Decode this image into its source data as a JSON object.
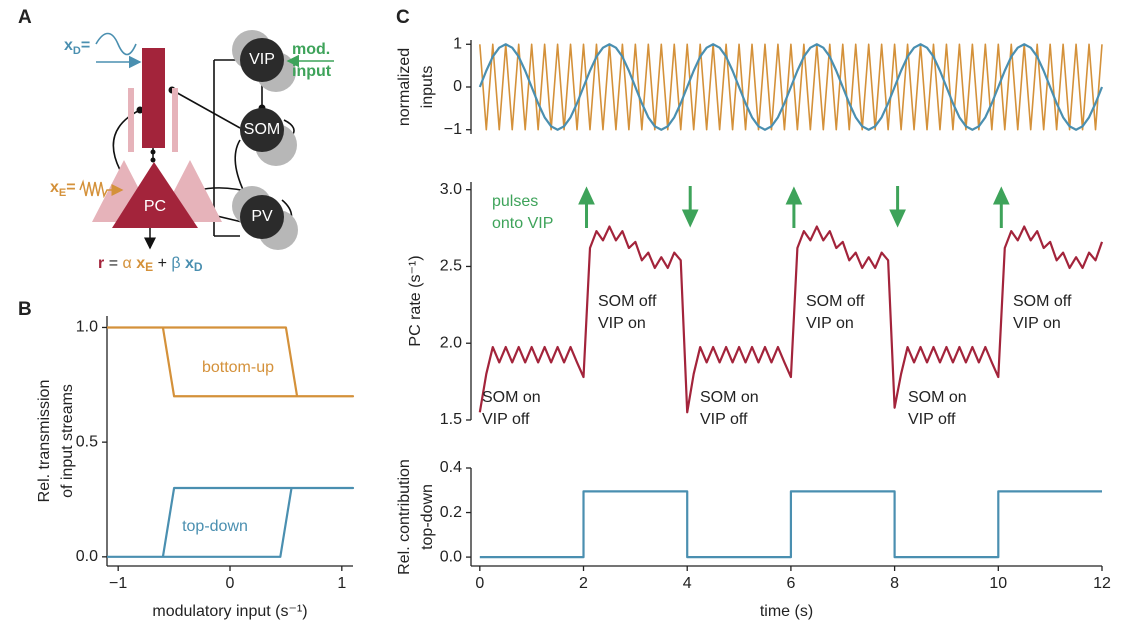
{
  "panel_labels": [
    "A",
    "B",
    "C"
  ],
  "diagram": {
    "cells": [
      "VIP",
      "SOM",
      "PV",
      "PC"
    ],
    "mod_input": [
      "mod.",
      "input"
    ],
    "xD": [
      "x",
      "D",
      "="
    ],
    "xE": [
      "x",
      "E",
      "="
    ],
    "equation": [
      "r",
      "=",
      "α",
      "x",
      "E",
      "+",
      "β",
      "x",
      "D"
    ]
  },
  "chart_data": [
    {
      "type": "line",
      "xlabel": "modulatory input (s⁻¹)",
      "ylabel": [
        "Rel. transmission",
        "of input streams"
      ],
      "xlim": [
        -1.1,
        1.1
      ],
      "ylim": [
        -0.04,
        1.05
      ],
      "xticks": [
        {
          "value": -1,
          "label": "−1"
        },
        0,
        1
      ],
      "yticks": [
        {
          "value": 0,
          "label": "0.0"
        },
        0.5,
        {
          "value": 1,
          "label": "1.0"
        }
      ],
      "series": [
        {
          "name": "bottom-up",
          "color": "#d4913a",
          "x": [
            -1.1,
            0.5,
            0.6,
            1.1,
            -0.5,
            -0.6,
            -1.1
          ],
          "values": [
            1,
            1,
            0.7,
            0.7,
            0.7,
            1,
            1
          ]
        },
        {
          "name": "top-down",
          "color": "#4a8fb0",
          "x": [
            -1.1,
            0.45,
            0.55,
            1.1,
            -0.5,
            -0.6,
            -1.1
          ],
          "values": [
            0,
            0,
            0.3,
            0.3,
            0.3,
            0,
            0
          ]
        }
      ]
    },
    {
      "type": "line",
      "ylabel": [
        "normalized",
        "inputs"
      ],
      "xlim": [
        -0.17,
        12
      ],
      "ylim": [
        -1.1,
        1.1
      ],
      "yticks": [
        {
          "value": -1,
          "label": "−1"
        },
        0,
        1
      ],
      "x": [
        0,
        0.125,
        0.25,
        0.375,
        0.5,
        0.625,
        0.75,
        0.875,
        1,
        1.125,
        1.25,
        1.375,
        1.5,
        1.625,
        1.75,
        1.875,
        2,
        2.125,
        2.25,
        2.375,
        2.5,
        2.625,
        2.75,
        2.875,
        3,
        3.125,
        3.25,
        3.375,
        3.5,
        3.625,
        3.75,
        3.875,
        4,
        4.125,
        4.25,
        4.375,
        4.5,
        4.625,
        4.75,
        4.875,
        5,
        5.125,
        5.25,
        5.375,
        5.5,
        5.625,
        5.75,
        5.875,
        6,
        6.125,
        6.25,
        6.375,
        6.5,
        6.625,
        6.75,
        6.875,
        7,
        7.125,
        7.25,
        7.375,
        7.5,
        7.625,
        7.75,
        7.875,
        8,
        8.125,
        8.25,
        8.375,
        8.5,
        8.625,
        8.75,
        8.875,
        9,
        9.125,
        9.25,
        9.375,
        9.5,
        9.625,
        9.75,
        9.875,
        10,
        10.125,
        10.25,
        10.375,
        10.5,
        10.625,
        10.75,
        10.875,
        11,
        11.125,
        11.25,
        11.375,
        11.5,
        11.625,
        11.75,
        11.875,
        12
      ],
      "series": [
        {
          "color": "#d4913a",
          "values": [
            1,
            -1,
            1,
            -1,
            1,
            -1,
            1,
            -1,
            1,
            -1,
            1,
            -1,
            1,
            -1,
            1,
            -1,
            1,
            -1,
            1,
            -1,
            1,
            -1,
            1,
            -1,
            1,
            -1,
            1,
            -1,
            1,
            -1,
            1,
            -1,
            1,
            -1,
            1,
            -1,
            1,
            -1,
            1,
            -1,
            1,
            -1,
            1,
            -1,
            1,
            -1,
            1,
            -1,
            1,
            -1,
            1,
            -1,
            1,
            -1,
            1,
            -1,
            1,
            -1,
            1,
            -1,
            1,
            -1,
            1,
            -1,
            1,
            -1,
            1,
            -1,
            1,
            -1,
            1,
            -1,
            1,
            -1,
            1,
            -1,
            1,
            -1,
            1,
            -1,
            1,
            -1,
            1,
            -1,
            1,
            -1,
            1,
            -1,
            1,
            -1,
            1,
            -1,
            1,
            -1,
            1,
            -1,
            1
          ]
        },
        {
          "color": "#4a8fb0",
          "values": [
            0,
            0.38,
            0.71,
            0.92,
            1,
            0.92,
            0.71,
            0.38,
            0,
            -0.38,
            -0.71,
            -0.92,
            -1,
            -0.92,
            -0.71,
            -0.38,
            0,
            0.38,
            0.71,
            0.92,
            1,
            0.92,
            0.71,
            0.38,
            0,
            -0.38,
            -0.71,
            -0.92,
            -1,
            -0.92,
            -0.71,
            -0.38,
            0,
            0.38,
            0.71,
            0.92,
            1,
            0.92,
            0.71,
            0.38,
            0,
            -0.38,
            -0.71,
            -0.92,
            -1,
            -0.92,
            -0.71,
            -0.38,
            0,
            0.38,
            0.71,
            0.92,
            1,
            0.92,
            0.71,
            0.38,
            0,
            -0.38,
            -0.71,
            -0.92,
            -1,
            -0.92,
            -0.71,
            -0.38,
            0,
            0.38,
            0.71,
            0.92,
            1,
            0.92,
            0.71,
            0.38,
            0,
            -0.38,
            -0.71,
            -0.92,
            -1,
            -0.92,
            -0.71,
            -0.38,
            0,
            0.38,
            0.71,
            0.92,
            1,
            0.92,
            0.71,
            0.38,
            0,
            -0.38,
            -0.71,
            -0.92,
            -1,
            -0.92,
            -0.71,
            -0.38,
            0
          ]
        }
      ]
    },
    {
      "type": "line",
      "ylabel": "PC rate (s⁻¹)",
      "xlim": [
        -0.17,
        12
      ],
      "ylim": [
        1.5,
        3.05
      ],
      "yticks": [
        1.5,
        {
          "value": 2,
          "label": "2.0"
        },
        2.5,
        {
          "value": 3,
          "label": "3.0"
        }
      ],
      "x": [
        0,
        0.125,
        0.25,
        0.375,
        0.5,
        0.625,
        0.75,
        0.875,
        1,
        1.125,
        1.25,
        1.375,
        1.5,
        1.625,
        1.75,
        1.875,
        2,
        2.125,
        2.25,
        2.375,
        2.5,
        2.625,
        2.75,
        2.875,
        3,
        3.125,
        3.25,
        3.375,
        3.5,
        3.625,
        3.75,
        3.875,
        4,
        4.125,
        4.25,
        4.375,
        4.5,
        4.625,
        4.75,
        4.875,
        5,
        5.125,
        5.25,
        5.375,
        5.5,
        5.625,
        5.75,
        5.875,
        6,
        6.125,
        6.25,
        6.375,
        6.5,
        6.625,
        6.75,
        6.875,
        7,
        7.125,
        7.25,
        7.375,
        7.5,
        7.625,
        7.75,
        7.875,
        8,
        8.125,
        8.25,
        8.375,
        8.5,
        8.625,
        8.75,
        8.875,
        9,
        9.125,
        9.25,
        9.375,
        9.5,
        9.625,
        9.75,
        9.875,
        10,
        10.125,
        10.25,
        10.375,
        10.5,
        10.625,
        10.75,
        10.875,
        11,
        11.125,
        11.25,
        11.375,
        11.5,
        11.625,
        11.75,
        11.875,
        12
      ],
      "series": [
        {
          "color": "#a3243b",
          "values": [
            1.55,
            1.8,
            1.975,
            1.875,
            1.975,
            1.875,
            1.975,
            1.875,
            1.975,
            1.875,
            1.975,
            1.875,
            1.975,
            1.875,
            1.975,
            1.875,
            1.78,
            2.62,
            2.73,
            2.67,
            2.76,
            2.67,
            2.73,
            2.62,
            2.66,
            2.54,
            2.59,
            2.49,
            2.56,
            2.49,
            2.59,
            2.54,
            1.55,
            1.8,
            1.975,
            1.875,
            1.975,
            1.875,
            1.975,
            1.875,
            1.975,
            1.875,
            1.975,
            1.875,
            1.975,
            1.875,
            1.975,
            1.875,
            1.78,
            2.62,
            2.73,
            2.67,
            2.76,
            2.67,
            2.73,
            2.62,
            2.66,
            2.54,
            2.59,
            2.49,
            2.56,
            2.49,
            2.59,
            2.54,
            1.58,
            1.8,
            1.975,
            1.875,
            1.975,
            1.875,
            1.975,
            1.875,
            1.975,
            1.875,
            1.975,
            1.875,
            1.975,
            1.875,
            1.975,
            1.875,
            1.78,
            2.62,
            2.73,
            2.67,
            2.76,
            2.67,
            2.73,
            2.62,
            2.66,
            2.54,
            2.59,
            2.49,
            2.56,
            2.49,
            2.59,
            2.54,
            2.66
          ]
        }
      ],
      "annotations": [
        {
          "text": [
            "pulses",
            "onto VIP"
          ],
          "color": "#3ea35a"
        },
        {
          "text": [
            "SOM on",
            "VIP off"
          ]
        },
        {
          "text": [
            "SOM on",
            "VIP off"
          ]
        },
        {
          "text": [
            "SOM on",
            "VIP off"
          ]
        },
        {
          "text": [
            "SOM off",
            "VIP on"
          ]
        },
        {
          "text": [
            "SOM off",
            "VIP on"
          ]
        },
        {
          "text": [
            "SOM off",
            "VIP on"
          ]
        }
      ],
      "pulse_color": "#3ea35a",
      "pulses_up": [
        2,
        6,
        10
      ],
      "pulses_down": [
        4,
        8
      ]
    },
    {
      "type": "line",
      "xlabel": "time (s)",
      "ylabel": [
        "Rel. contribution",
        "top-down"
      ],
      "xlim": [
        -0.17,
        12
      ],
      "ylim": [
        -0.04,
        0.4
      ],
      "xticks": [
        0,
        2,
        4,
        6,
        8,
        10,
        12
      ],
      "yticks": [
        {
          "value": 0,
          "label": "0.0"
        },
        0.2,
        0.4
      ],
      "x": [
        0,
        2,
        2,
        4,
        4,
        6,
        6,
        8,
        8,
        10,
        10,
        12
      ],
      "series": [
        {
          "color": "#4a8fb0",
          "values": [
            0,
            0,
            0.295,
            0.295,
            0,
            0,
            0.295,
            0.295,
            0,
            0,
            0.295,
            0.295
          ]
        }
      ]
    }
  ]
}
